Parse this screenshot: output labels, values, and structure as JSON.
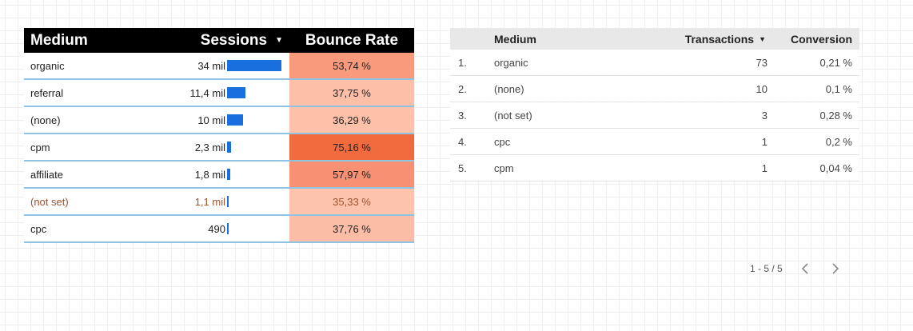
{
  "left_table": {
    "headers": {
      "medium": "Medium",
      "sessions": "Sessions",
      "bounce_rate": "Bounce Rate"
    },
    "sort_arrow": "▼",
    "rows": [
      {
        "medium": "organic",
        "sessions": "34 mil",
        "sessions_fraction": 1.0,
        "bounce_rate": "53,74 %",
        "bounce_color": "#fa9a7c"
      },
      {
        "medium": "referral",
        "sessions": "11,4 mil",
        "sessions_fraction": 0.335,
        "bounce_rate": "37,75 %",
        "bounce_color": "#fdbfa8"
      },
      {
        "medium": "(none)",
        "sessions": "10 mil",
        "sessions_fraction": 0.294,
        "bounce_rate": "36,29 %",
        "bounce_color": "#fdc1aa"
      },
      {
        "medium": "cpm",
        "sessions": "2,3 mil",
        "sessions_fraction": 0.068,
        "bounce_rate": "75,16 %",
        "bounce_color": "#f06a3e"
      },
      {
        "medium": "affiliate",
        "sessions": "1,8 mil",
        "sessions_fraction": 0.053,
        "bounce_rate": "57,97 %",
        "bounce_color": "#f89173"
      },
      {
        "medium": "(not set)",
        "sessions": "1,1 mil",
        "sessions_fraction": 0.032,
        "bounce_rate": "35,33 %",
        "bounce_color": "#fdc3ad",
        "muted": true
      },
      {
        "medium": "cpc",
        "sessions": "490",
        "sessions_fraction": 0.0144,
        "bounce_rate": "37,76 %",
        "bounce_color": "#fcbda6"
      }
    ]
  },
  "right_table": {
    "headers": {
      "medium": "Medium",
      "transactions": "Transactions",
      "conversion": "Conversion"
    },
    "sort_arrow": "▼",
    "rows": [
      {
        "idx": "1.",
        "medium": "organic",
        "transactions": "73",
        "conversion": "0,21 %"
      },
      {
        "idx": "2.",
        "medium": "(none)",
        "transactions": "10",
        "conversion": "0,1 %"
      },
      {
        "idx": "3.",
        "medium": "(not set)",
        "transactions": "3",
        "conversion": "0,28 %"
      },
      {
        "idx": "4.",
        "medium": "cpc",
        "transactions": "1",
        "conversion": "0,2 %"
      },
      {
        "idx": "5.",
        "medium": "cpm",
        "transactions": "1",
        "conversion": "0,04 %"
      }
    ]
  },
  "pagination": {
    "label": "1 - 5 / 5",
    "prev_icon": "chevron-left-icon",
    "next_icon": "chevron-right-icon"
  },
  "colors": {
    "bar": "#1a6fdf",
    "row_border": "#8fc3e4",
    "header_bg": "#000000"
  }
}
